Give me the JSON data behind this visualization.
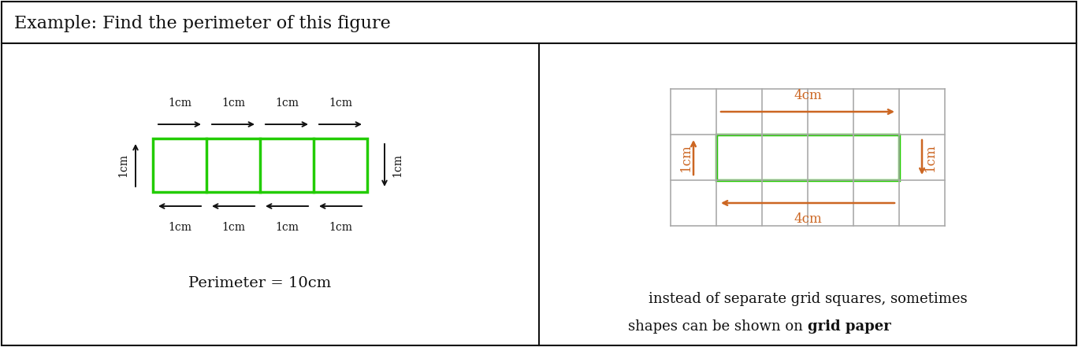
{
  "title": "Example: Find the perimeter of this figure",
  "title_fontsize": 16,
  "bg_color": "#ffffff",
  "border_color": "#000000",
  "green_color": "#22cc00",
  "orange_color": "#cc6622",
  "black_color": "#111111",
  "gray_color": "#aaaaaa",
  "perimeter_text": "Perimeter = 10cm",
  "bottom_text_line1": "instead of separate grid squares, sometimes",
  "bottom_text_line2": "shapes can be shown on ",
  "bottom_text_bold": "grid paper",
  "grid_cols": 6,
  "grid_rows": 3
}
